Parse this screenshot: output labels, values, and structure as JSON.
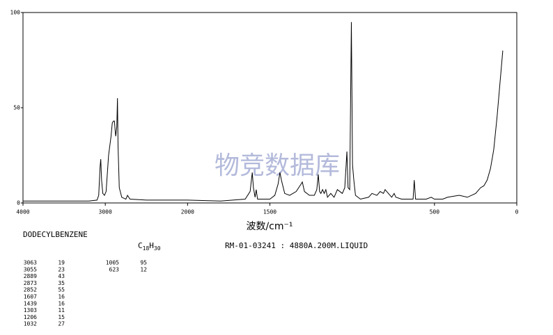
{
  "chart_data": {
    "type": "line",
    "x_label": "波数/cm⁻¹",
    "watermark": "物竞数据库",
    "compound": "DODECYLBENZENE",
    "formula": {
      "element1": "C",
      "count1": "18",
      "element2": "H",
      "count2": "30"
    },
    "reference": "RM-01-03241 : 4880A.200M.LIQUID",
    "xlim": [
      4000,
      0
    ],
    "x_scale_break": 2000,
    "xticks": [
      4000,
      3000,
      2000,
      1500,
      500,
      0
    ],
    "ylim": [
      0,
      100
    ],
    "yticks": [
      0,
      50,
      100
    ],
    "x": [
      4000,
      3200,
      3100,
      3080,
      3063,
      3055,
      3045,
      3030,
      3010,
      2990,
      2960,
      2930,
      2915,
      2900,
      2889,
      2880,
      2873,
      2860,
      2852,
      2845,
      2830,
      2800,
      2750,
      2730,
      2700,
      2500,
      2000,
      1800,
      1650,
      1620,
      1607,
      1600,
      1590,
      1583,
      1575,
      1500,
      1470,
      1450,
      1439,
      1430,
      1410,
      1380,
      1340,
      1310,
      1303,
      1290,
      1260,
      1230,
      1215,
      1206,
      1198,
      1190,
      1180,
      1170,
      1160,
      1150,
      1130,
      1110,
      1090,
      1075,
      1060,
      1045,
      1032,
      1025,
      1015,
      1005,
      998,
      990,
      980,
      950,
      900,
      880,
      850,
      830,
      810,
      800,
      780,
      760,
      745,
      735,
      700,
      630,
      623,
      615,
      550,
      520,
      500,
      450,
      420,
      350,
      300,
      250,
      220,
      200,
      180,
      160,
      140,
      120,
      105,
      95,
      85
    ],
    "series": [
      {
        "name": "DODECYLBENZENE",
        "color": "#000000",
        "values": [
          1,
          1,
          1.5,
          4,
          19,
          23,
          12,
          5,
          4,
          6,
          25,
          35,
          42,
          43,
          43,
          38,
          35,
          40,
          55,
          30,
          8,
          3,
          2,
          4,
          2,
          1.5,
          1.5,
          1,
          2,
          6,
          16,
          8,
          3,
          7,
          2,
          2,
          4,
          10,
          16,
          12,
          5,
          4,
          6,
          10,
          11,
          6,
          4,
          4,
          7,
          15,
          6,
          5,
          7,
          5,
          7,
          3,
          5,
          3,
          7,
          6,
          5,
          8,
          27,
          8,
          7,
          95,
          20,
          12,
          4,
          2,
          3,
          5,
          4,
          6,
          5,
          7,
          5,
          3,
          5,
          3,
          2,
          2,
          12,
          2,
          2,
          3,
          2,
          2,
          3,
          4,
          3,
          5,
          8,
          9,
          12,
          18,
          28,
          45,
          60,
          70,
          80
        ]
      }
    ],
    "peaks": [
      {
        "wavenumber": 3063,
        "intensity": 19
      },
      {
        "wavenumber": 3055,
        "intensity": 23
      },
      {
        "wavenumber": 2889,
        "intensity": 43
      },
      {
        "wavenumber": 2873,
        "intensity": 35
      },
      {
        "wavenumber": 2852,
        "intensity": 55
      },
      {
        "wavenumber": 1607,
        "intensity": 16
      },
      {
        "wavenumber": 1439,
        "intensity": 16
      },
      {
        "wavenumber": 1303,
        "intensity": 11
      },
      {
        "wavenumber": 1206,
        "intensity": 15
      },
      {
        "wavenumber": 1032,
        "intensity": 27
      },
      {
        "wavenumber": 1005,
        "intensity": 95
      },
      {
        "wavenumber": 623,
        "intensity": 12
      }
    ]
  }
}
